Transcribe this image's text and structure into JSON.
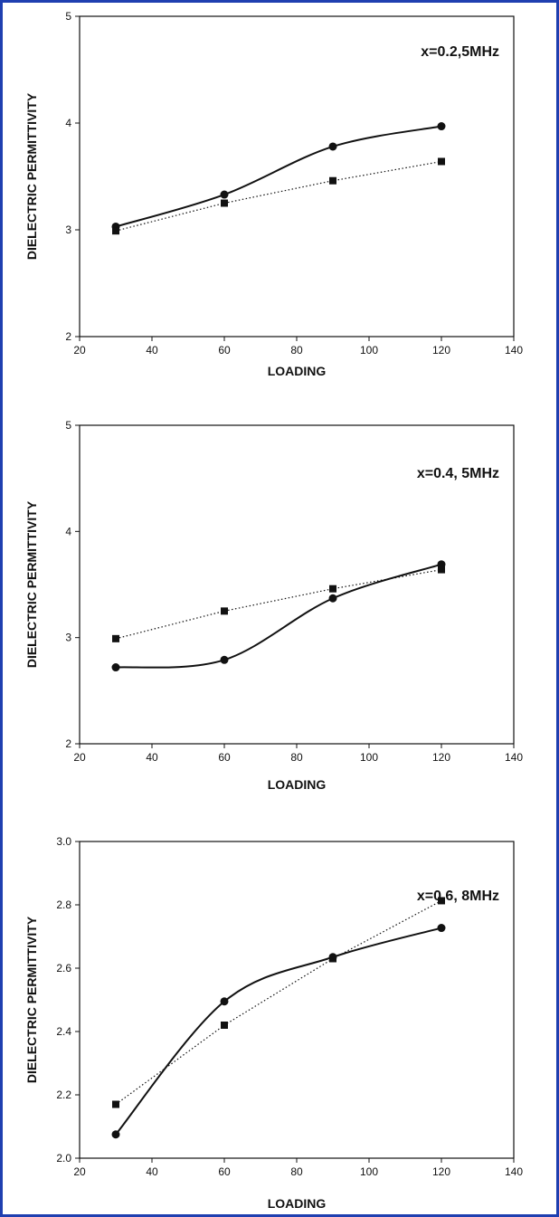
{
  "colors": {
    "frame": "#1f3fb0",
    "ink": "#111111"
  },
  "chart_data": [
    {
      "type": "line",
      "annotation": "x=0.2,5MHz",
      "xlabel": "LOADING",
      "ylabel": "DIELECTRIC PERMITTIVITY",
      "xlim": [
        20,
        140
      ],
      "ylim": [
        2,
        5
      ],
      "xticks": [
        20,
        40,
        60,
        80,
        100,
        120,
        140
      ],
      "yticks": [
        2,
        3,
        4,
        5
      ],
      "grid": false,
      "x": [
        30,
        60,
        90,
        120
      ],
      "series": [
        {
          "marker": "circle",
          "line": "solid-smooth",
          "values": [
            3.03,
            3.33,
            3.78,
            3.97
          ]
        },
        {
          "marker": "square",
          "line": "dotted",
          "values": [
            2.99,
            3.25,
            3.46,
            3.64
          ]
        }
      ]
    },
    {
      "type": "line",
      "annotation": "x=0.4, 5MHz",
      "xlabel": "LOADING",
      "ylabel": "DIELECTRIC PERMITTIVITY",
      "xlim": [
        20,
        140
      ],
      "ylim": [
        2,
        5
      ],
      "xticks": [
        20,
        40,
        60,
        80,
        100,
        120,
        140
      ],
      "yticks": [
        2,
        3,
        4,
        5
      ],
      "grid": false,
      "x": [
        30,
        60,
        90,
        120
      ],
      "series": [
        {
          "marker": "circle",
          "line": "solid-smooth",
          "values": [
            2.72,
            2.79,
            3.37,
            3.69
          ]
        },
        {
          "marker": "square",
          "line": "dotted",
          "values": [
            2.99,
            3.25,
            3.46,
            3.64
          ]
        }
      ]
    },
    {
      "type": "line",
      "annotation": "x=0.6, 8MHz",
      "xlabel": "LOADING",
      "ylabel": "DIELECTRIC PERMITTIVITY",
      "xlim": [
        20,
        140
      ],
      "ylim": [
        2.0,
        3.0
      ],
      "xticks": [
        20,
        40,
        60,
        80,
        100,
        120,
        140
      ],
      "yticks": [
        "2.0",
        "2.2",
        "2.4",
        "2.6",
        "2.8",
        "3.0"
      ],
      "grid": false,
      "x": [
        30,
        60,
        90,
        120
      ],
      "series": [
        {
          "marker": "circle",
          "line": "solid-smooth",
          "values": [
            2.075,
            2.495,
            2.635,
            2.727
          ]
        },
        {
          "marker": "square",
          "line": "dotted",
          "values": [
            2.17,
            2.42,
            2.63,
            2.813
          ]
        }
      ]
    }
  ]
}
